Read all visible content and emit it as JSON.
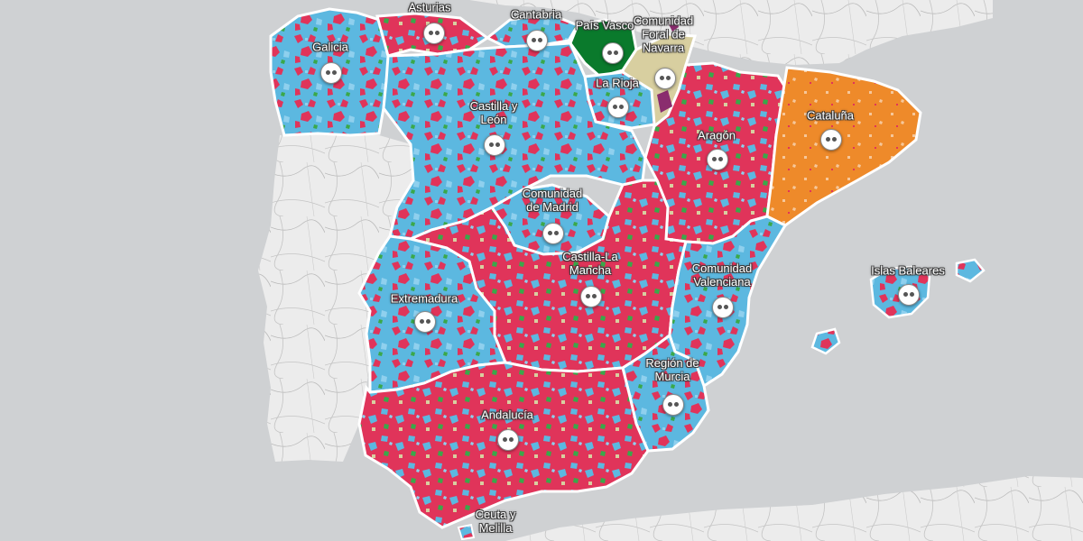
{
  "map": {
    "colors": {
      "sea": "#cfd1d3",
      "portugal": "#e9e9e9",
      "france": "#e6e6e6",
      "africa": "#e6e6e6",
      "pp": "#5cb8e0",
      "psoe": "#e0345a",
      "podemos": "#8a2d6e",
      "ciudadanos": "#f08a2d",
      "erc": "#ee8a2a",
      "pnv": "#0a7a2c",
      "iu": "#3aa84a",
      "other": "#d8cfa0",
      "border": "#ffffff"
    },
    "regions": [
      {
        "name": "Galicia",
        "icon": "face-marker-icon"
      },
      {
        "name": "Asturias",
        "icon": "face-marker-icon"
      },
      {
        "name": "Cantabria",
        "icon": "face-marker-icon"
      },
      {
        "name": "País Vasco",
        "icon": "face-marker-icon"
      },
      {
        "name": "Comunidad\nForal de\nNavarra",
        "icon": "face-marker-icon"
      },
      {
        "name": "La Rioja",
        "icon": "face-marker-icon"
      },
      {
        "name": "Castilla y\nLeón",
        "icon": "face-marker-icon"
      },
      {
        "name": "Aragón",
        "icon": "face-marker-icon"
      },
      {
        "name": "Cataluña",
        "icon": "face-marker-icon"
      },
      {
        "name": "Comunidad\nde Madrid",
        "icon": "face-marker-icon"
      },
      {
        "name": "Castilla-La\nMancha",
        "icon": "face-marker-icon"
      },
      {
        "name": "Comunidad\nValenciana",
        "icon": "face-marker-icon"
      },
      {
        "name": "Islas Baleares",
        "icon": "face-marker-icon"
      },
      {
        "name": "Extremadura",
        "icon": "face-marker-icon"
      },
      {
        "name": "Región de\nMurcia",
        "icon": "face-marker-icon"
      },
      {
        "name": "Andalucía",
        "icon": "face-marker-icon"
      },
      {
        "name": "Ceuta y\nMelilla",
        "icon": "face-marker-icon"
      }
    ]
  }
}
